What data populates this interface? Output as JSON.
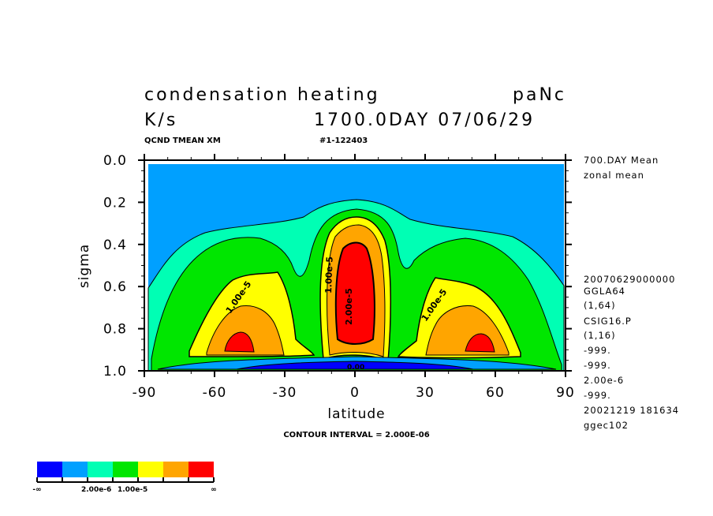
{
  "header": {
    "title": "condensation heating",
    "run_id": "paNc",
    "units": "K/s",
    "time": "1700.0DAY 07/06/29",
    "variable_info": "QCND TMEAN XM",
    "file_id": "#1-122403"
  },
  "side_info": [
    "700.DAY Mean",
    "zonal mean",
    "20070629000000",
    "GGLA64",
    "(1,64)",
    "CSIG16.P",
    "(1,16)",
    "-999.",
    "-999.",
    "2.00e-6",
    "-999.",
    "20021219 181634",
    "ggec102"
  ],
  "footer": {
    "contour_interval": "CONTOUR INTERVAL = 2.000E-06"
  },
  "colorbar": {
    "colors": [
      "#0000ff",
      "#00a0ff",
      "#00ffb4",
      "#00e600",
      "#ffff00",
      "#ffa500",
      "#ff0000"
    ],
    "labels": [
      "-∞",
      "2.00e-6",
      "1.00e-5",
      "∞"
    ]
  },
  "chart_data": {
    "type": "heatmap",
    "title": "condensation heating",
    "xlabel": "latitude",
    "ylabel": "sigma",
    "xlim": [
      -90,
      90
    ],
    "ylim": [
      1.0,
      0.0
    ],
    "xticks": [
      "-90",
      "-60",
      "-30",
      "0",
      "30",
      "60",
      "90"
    ],
    "xtick_values": [
      -90,
      -60,
      -30,
      0,
      30,
      60,
      90
    ],
    "yticks": [
      "0.0",
      "0.2",
      "0.4",
      "0.6",
      "0.8",
      "1.0"
    ],
    "ytick_values": [
      0.0,
      0.2,
      0.4,
      0.6,
      0.8,
      1.0
    ],
    "contour_interval": 2e-06,
    "contour_labels": [
      "1.00e-5",
      "1.00e-5",
      "1.00e-5",
      "2.00e-5",
      "0.00"
    ],
    "features": [
      {
        "name": "tropical maximum",
        "lat": 0,
        "sigma": 0.6,
        "value_above": 2e-05
      },
      {
        "name": "southern midlatitude maximum",
        "lat": -50,
        "sigma": 0.85,
        "value_above": 2e-05
      },
      {
        "name": "northern midlatitude maximum",
        "lat": 50,
        "sigma": 0.85,
        "value_above": 2e-05
      },
      {
        "name": "near-surface minimum",
        "lat": 0,
        "sigma": 0.98,
        "value_below": 0
      }
    ]
  }
}
